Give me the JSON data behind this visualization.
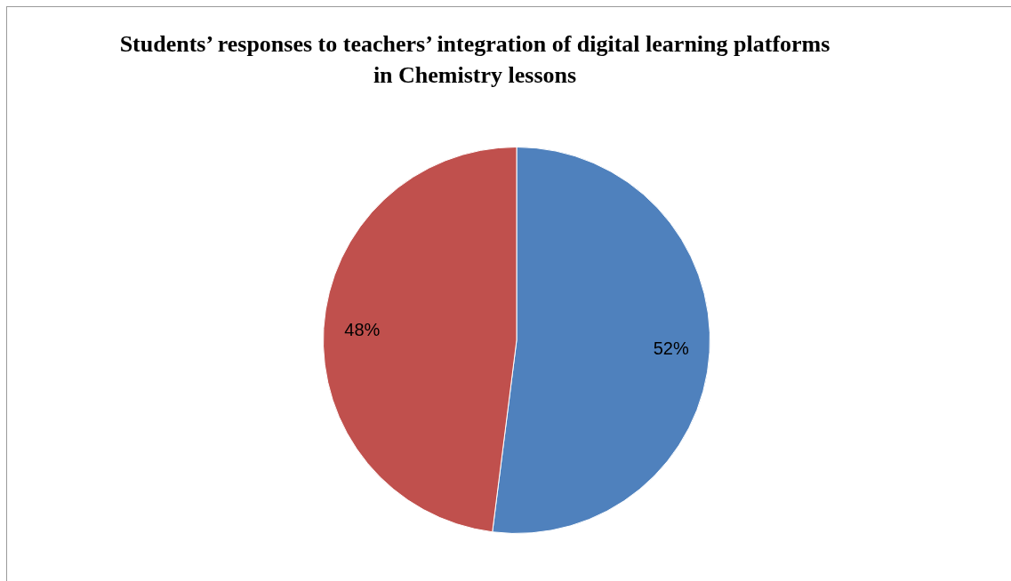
{
  "chart_data": {
    "type": "pie",
    "title": "Students’ responses to teachers’ integration of digital learning platforms in Chemistry lessons",
    "categories": [
      null,
      null
    ],
    "values": [
      52,
      48
    ],
    "colors": [
      "#4f81bd",
      "#c0504d"
    ],
    "value_labels": [
      "52%",
      "48%"
    ],
    "legend": false
  }
}
